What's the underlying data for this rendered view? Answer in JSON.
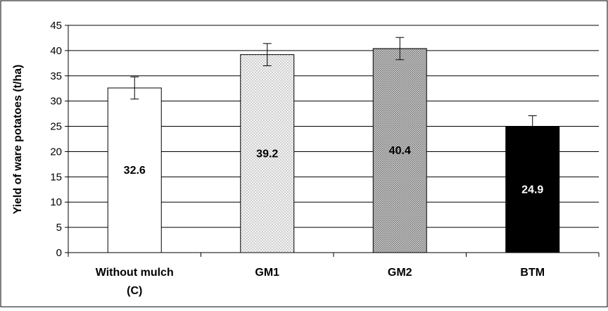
{
  "chart_data": {
    "type": "bar",
    "title": "",
    "xlabel": "",
    "ylabel": "Yield of ware potatoes (t/ha)",
    "ylim": [
      0,
      45
    ],
    "ytick_step": 5,
    "yticks": [
      "0",
      "5",
      "10",
      "15",
      "20",
      "25",
      "30",
      "35",
      "40",
      "45"
    ],
    "grid": true,
    "legend": "none",
    "categories": [
      {
        "line1": "Without mulch",
        "line2": "(C)"
      },
      {
        "line1": "GM1",
        "line2": ""
      },
      {
        "line1": "GM2",
        "line2": ""
      },
      {
        "line1": "BTM",
        "line2": ""
      }
    ],
    "values": [
      32.6,
      39.2,
      40.4,
      24.9
    ],
    "value_labels": [
      "32.6",
      "39.2",
      "40.4",
      "24.9"
    ],
    "error_bars": [
      2.2,
      2.2,
      2.2,
      2.2
    ],
    "bar_styles": [
      {
        "fill": "#ffffff",
        "pattern": "none",
        "label_color": "#000000"
      },
      {
        "fill": "#eeeeee",
        "pattern": "dots-light",
        "label_color": "#000000"
      },
      {
        "fill": "#b5b5b5",
        "pattern": "dots-dense",
        "label_color": "#000000"
      },
      {
        "fill": "#000000",
        "pattern": "none",
        "label_color": "#ffffff"
      }
    ]
  }
}
